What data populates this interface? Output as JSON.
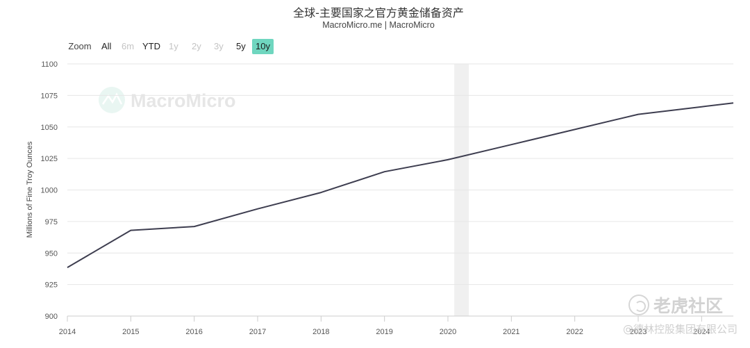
{
  "chart_data": {
    "type": "line",
    "title": "全球-主要国家之官方黄金储备资产",
    "subtitle": "MacroMicro.me | MacroMicro",
    "ylabel": "Millions of Fine Troy Ounces",
    "xlabel": "",
    "x_ticks": [
      "2014",
      "2015",
      "2016",
      "2017",
      "2018",
      "2019",
      "2020",
      "2021",
      "2022",
      "2023",
      "2024"
    ],
    "y_ticks": [
      "1100",
      "1075",
      "1050",
      "1025",
      "1000",
      "975",
      "950",
      "925",
      "900"
    ],
    "ylim": [
      900,
      1100
    ],
    "xlim": [
      2014.0,
      2024.5
    ],
    "grid": true,
    "legend": "none",
    "highlight_band": [
      2020.1,
      2020.33
    ],
    "series": [
      {
        "color": "#3d3d4f",
        "x": [
          2014.0,
          2015.0,
          2016.0,
          2017.0,
          2018.0,
          2019.0,
          2020.0,
          2021.0,
          2022.0,
          2023.0,
          2024.0,
          2024.5
        ],
        "y": [
          938.5,
          968,
          971,
          985,
          998,
          1014.5,
          1024,
          1036,
          1048,
          1060,
          1066,
          1069
        ]
      }
    ]
  },
  "range_selector": {
    "label": "Zoom",
    "buttons": [
      {
        "label": "All",
        "state": "enabled"
      },
      {
        "label": "6m",
        "state": "disabled"
      },
      {
        "label": "YTD",
        "state": "enabled"
      },
      {
        "label": "1y",
        "state": "disabled"
      },
      {
        "label": "2y",
        "state": "disabled"
      },
      {
        "label": "3y",
        "state": "disabled"
      },
      {
        "label": "5y",
        "state": "enabled"
      },
      {
        "label": "10y",
        "state": "active"
      }
    ]
  },
  "watermarks": {
    "brand": "MacroMicro",
    "tiger": "老虎社区",
    "credit": "@德林控股集团有限公司"
  },
  "colors": {
    "line": "#3d3d4f",
    "grid": "#e6e6e6",
    "band": "#f0f0f0",
    "accent": "#6fd6bf"
  }
}
